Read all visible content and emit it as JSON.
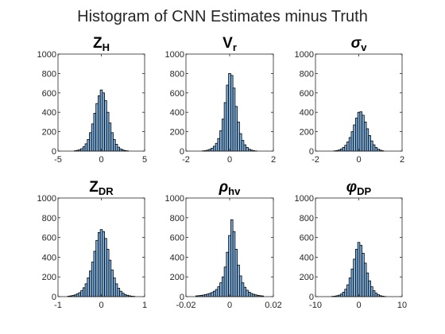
{
  "figure": {
    "title": "Histogram of CNN Estimates minus Truth"
  },
  "colors": {
    "bar_fill": "#7fb2e0",
    "bar_edge": "#000000",
    "axis": "#262626"
  },
  "chart_data": [
    {
      "type": "bar",
      "id": "zh",
      "title_main": "Z",
      "title_sub": "H",
      "title_italic": false,
      "x": [
        -3.0,
        -2.75,
        -2.5,
        -2.25,
        -2.0,
        -1.75,
        -1.5,
        -1.25,
        -1.0,
        -0.75,
        -0.5,
        -0.25,
        0.0,
        0.25,
        0.5,
        0.75,
        1.0,
        1.25,
        1.5,
        1.75,
        2.0,
        2.25,
        2.5,
        2.75,
        3.0
      ],
      "values": [
        4,
        8,
        15,
        25,
        45,
        75,
        120,
        190,
        280,
        390,
        490,
        570,
        630,
        600,
        520,
        400,
        290,
        190,
        120,
        70,
        40,
        22,
        12,
        6,
        3
      ],
      "bin_width": 0.25,
      "xlim": [
        -5,
        5
      ],
      "ylim": [
        0,
        1000
      ],
      "xticks": [
        -5,
        0,
        5
      ],
      "xtick_labels": [
        "-5",
        "0",
        "5"
      ],
      "yticks": [
        0,
        200,
        400,
        600,
        800,
        1000
      ],
      "ytick_labels": [
        "0",
        "200",
        "400",
        "600",
        "800",
        "1000"
      ]
    },
    {
      "type": "bar",
      "id": "vr",
      "title_main": "V",
      "title_sub": "r",
      "title_italic": false,
      "x": [
        -1.2,
        -1.1,
        -1.0,
        -0.9,
        -0.8,
        -0.7,
        -0.6,
        -0.5,
        -0.4,
        -0.3,
        -0.2,
        -0.1,
        0.0,
        0.1,
        0.2,
        0.3,
        0.4,
        0.5,
        0.6,
        0.7,
        0.8,
        0.9,
        1.0,
        1.1,
        1.2
      ],
      "values": [
        3,
        5,
        10,
        18,
        30,
        50,
        80,
        130,
        210,
        330,
        500,
        680,
        800,
        780,
        650,
        460,
        300,
        180,
        110,
        65,
        38,
        20,
        10,
        5,
        2
      ],
      "bin_width": 0.1,
      "xlim": [
        -2,
        2
      ],
      "ylim": [
        0,
        1000
      ],
      "xticks": [
        -2,
        0,
        2
      ],
      "xtick_labels": [
        "-2",
        "0",
        "2"
      ],
      "yticks": [
        0,
        200,
        400,
        600,
        800,
        1000
      ],
      "ytick_labels": [
        "0",
        "200",
        "400",
        "600",
        "800",
        "1000"
      ]
    },
    {
      "type": "bar",
      "id": "sigma",
      "title_main": "σ",
      "title_sub": "v",
      "title_italic": true,
      "x": [
        -1.1,
        -1.0,
        -0.9,
        -0.8,
        -0.7,
        -0.6,
        -0.5,
        -0.4,
        -0.3,
        -0.2,
        -0.1,
        0.0,
        0.1,
        0.2,
        0.3,
        0.4,
        0.5,
        0.6,
        0.7,
        0.8,
        0.9,
        1.0,
        1.1
      ],
      "values": [
        3,
        6,
        12,
        22,
        38,
        60,
        95,
        140,
        200,
        270,
        340,
        400,
        405,
        370,
        300,
        230,
        160,
        105,
        65,
        38,
        20,
        10,
        4
      ],
      "bin_width": 0.1,
      "xlim": [
        -2,
        2
      ],
      "ylim": [
        0,
        1000
      ],
      "xticks": [
        -2,
        0,
        2
      ],
      "xtick_labels": [
        "-2",
        "0",
        "2"
      ],
      "yticks": [
        0,
        200,
        400,
        600,
        800,
        1000
      ],
      "ytick_labels": [
        "0",
        "200",
        "400",
        "600",
        "800",
        "1000"
      ]
    },
    {
      "type": "bar",
      "id": "zdr",
      "title_main": "Z",
      "title_sub": "DR",
      "title_italic": false,
      "x": [
        -0.75,
        -0.7,
        -0.65,
        -0.6,
        -0.55,
        -0.5,
        -0.45,
        -0.4,
        -0.35,
        -0.3,
        -0.25,
        -0.2,
        -0.15,
        -0.1,
        -0.05,
        0.0,
        0.05,
        0.1,
        0.15,
        0.2,
        0.25,
        0.3,
        0.35,
        0.4,
        0.45,
        0.5,
        0.55,
        0.6,
        0.65,
        0.7,
        0.75
      ],
      "values": [
        5,
        8,
        12,
        18,
        28,
        40,
        60,
        90,
        130,
        190,
        260,
        350,
        460,
        570,
        650,
        680,
        660,
        590,
        480,
        370,
        270,
        190,
        130,
        85,
        55,
        35,
        22,
        14,
        9,
        5,
        3
      ],
      "bin_width": 0.05,
      "xlim": [
        -1,
        1
      ],
      "ylim": [
        0,
        1000
      ],
      "xticks": [
        -1,
        0,
        1
      ],
      "xtick_labels": [
        "-1",
        "0",
        "1"
      ],
      "yticks": [
        0,
        200,
        400,
        600,
        800,
        1000
      ],
      "ytick_labels": [
        "0",
        "200",
        "400",
        "600",
        "800",
        "1000"
      ]
    },
    {
      "type": "bar",
      "id": "rhohv",
      "title_main": "ρ",
      "title_sub": "hv",
      "title_italic": true,
      "x": [
        -0.015,
        -0.014,
        -0.013,
        -0.012,
        -0.011,
        -0.01,
        -0.009,
        -0.008,
        -0.007,
        -0.006,
        -0.005,
        -0.004,
        -0.003,
        -0.002,
        -0.001,
        0.0,
        0.001,
        0.002,
        0.003,
        0.004,
        0.005,
        0.006,
        0.007,
        0.008,
        0.009,
        0.01,
        0.011,
        0.012,
        0.013,
        0.014,
        0.015
      ],
      "values": [
        8,
        10,
        13,
        16,
        20,
        26,
        33,
        42,
        55,
        72,
        100,
        140,
        200,
        300,
        450,
        620,
        780,
        660,
        480,
        320,
        210,
        140,
        95,
        65,
        45,
        32,
        24,
        18,
        13,
        10,
        7
      ],
      "bin_width": 0.001,
      "xlim": [
        -0.02,
        0.02
      ],
      "ylim": [
        0,
        1000
      ],
      "xticks": [
        -0.02,
        0,
        0.02
      ],
      "xtick_labels": [
        "-0.02",
        "0",
        "0.02"
      ],
      "yticks": [
        0,
        200,
        400,
        600,
        800,
        1000
      ],
      "ytick_labels": [
        "0",
        "200",
        "400",
        "600",
        "800",
        "1000"
      ]
    },
    {
      "type": "bar",
      "id": "phidp",
      "title_main": "φ",
      "title_sub": "DP",
      "title_italic": true,
      "x": [
        -6.0,
        -5.5,
        -5.0,
        -4.5,
        -4.0,
        -3.5,
        -3.0,
        -2.5,
        -2.0,
        -1.5,
        -1.0,
        -0.5,
        0.0,
        0.5,
        1.0,
        1.5,
        2.0,
        2.5,
        3.0,
        3.5,
        4.0,
        4.5,
        5.0,
        5.5,
        6.0
      ],
      "values": [
        3,
        5,
        9,
        15,
        26,
        45,
        75,
        120,
        190,
        280,
        380,
        480,
        550,
        520,
        440,
        340,
        240,
        160,
        100,
        60,
        35,
        20,
        10,
        5,
        2
      ],
      "bin_width": 0.5,
      "xlim": [
        -10,
        10
      ],
      "ylim": [
        0,
        1000
      ],
      "xticks": [
        -10,
        0,
        10
      ],
      "xtick_labels": [
        "-10",
        "0",
        "10"
      ],
      "yticks": [
        0,
        200,
        400,
        600,
        800,
        1000
      ],
      "ytick_labels": [
        "0",
        "200",
        "400",
        "600",
        "800",
        "1000"
      ]
    }
  ]
}
